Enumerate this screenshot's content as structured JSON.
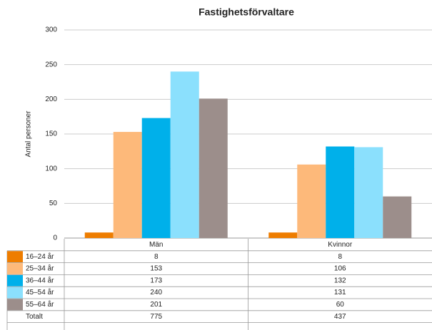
{
  "chart_data": {
    "type": "bar",
    "title": "Fastighetsförvaltare",
    "y_label": "Antal personer",
    "categories": [
      "Män",
      "Kvinnor"
    ],
    "series": [
      {
        "name": "16–24 år",
        "color": "#ee7d00",
        "values": [
          8,
          8
        ]
      },
      {
        "name": "25–34 år",
        "color": "#fdb97a",
        "values": [
          153,
          106
        ]
      },
      {
        "name": "36–44 år",
        "color": "#00b0ea",
        "values": [
          173,
          132
        ]
      },
      {
        "name": "45–54 år",
        "color": "#8be0fd",
        "values": [
          240,
          131
        ]
      },
      {
        "name": "55–64 år",
        "color": "#9c8e8b",
        "values": [
          201,
          60
        ]
      }
    ],
    "total_label": "Totalt",
    "totals": [
      775,
      437
    ],
    "ylim": [
      0,
      300
    ],
    "yticks": [
      0,
      50,
      100,
      150,
      200,
      250,
      300
    ],
    "grid": true
  }
}
